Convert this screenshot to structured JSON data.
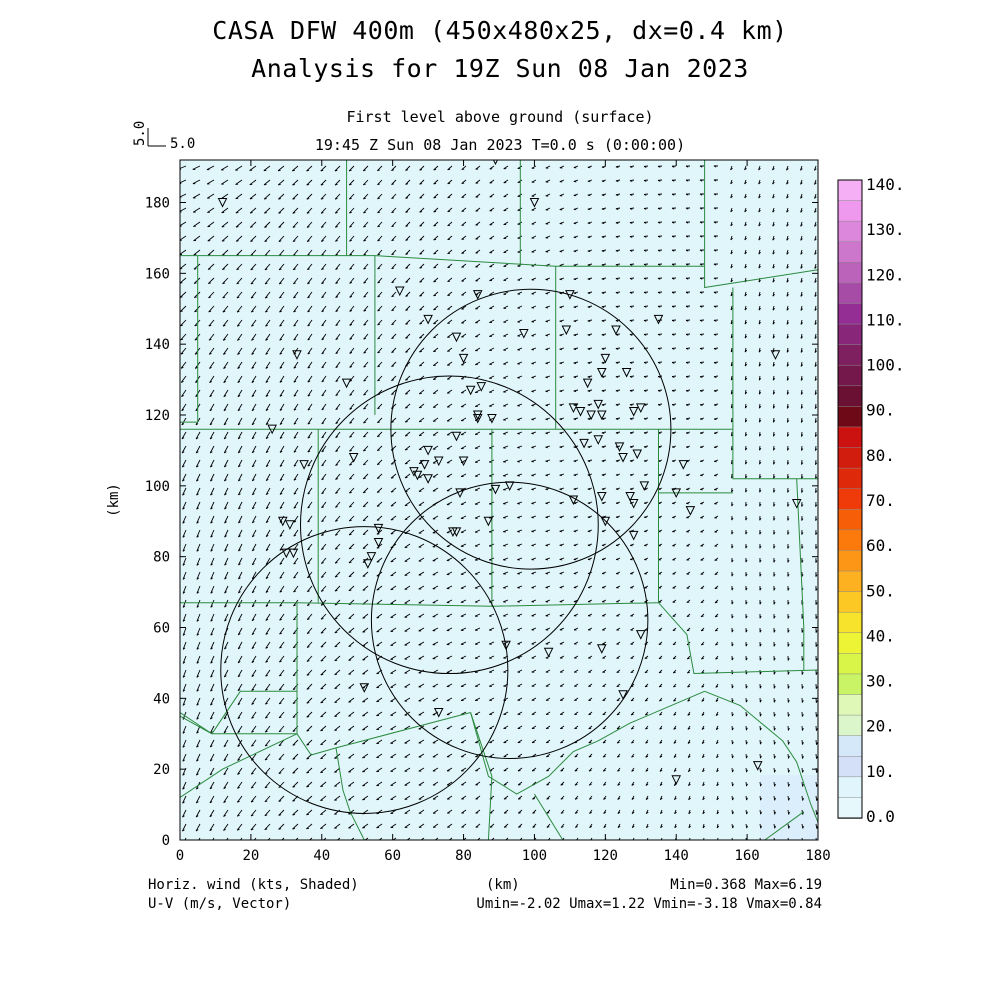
{
  "header": {
    "title_line1": "CASA DFW 400m (450x480x25, dx=0.4 km)",
    "title_line2": "Analysis for 19Z Sun 08 Jan 2023",
    "level": "First level above ground (surface)",
    "valid_time": "19:45 Z Sun 08 Jan 2023    T=0.0 s (0:00:00)"
  },
  "reference_vector": {
    "vertical_label": "5.0",
    "horizontal_label": "5.0"
  },
  "axes": {
    "x_label": "(km)",
    "y_label": "(km)",
    "x_ticks": [
      "0",
      "20",
      "40",
      "60",
      "80",
      "100",
      "120",
      "140",
      "160",
      "180"
    ],
    "y_ticks": [
      "0",
      "20",
      "40",
      "60",
      "80",
      "100",
      "120",
      "140",
      "160",
      "180"
    ],
    "x_range": [
      0,
      180
    ],
    "y_range": [
      0,
      192
    ]
  },
  "colorbar": {
    "labels": [
      "140.",
      "130.",
      "120.",
      "110.",
      "100.",
      "90.",
      "80.",
      "70.",
      "60.",
      "50.",
      "40.",
      "30.",
      "20.",
      "10.",
      "0.0"
    ],
    "colors": [
      "#f5b0f5",
      "#ee98ee",
      "#dc86dc",
      "#cc76cc",
      "#bb62bb",
      "#a64ca6",
      "#942e94",
      "#88267a",
      "#7e2060",
      "#74184c",
      "#6a1033",
      "#6e0a18",
      "#cc1111",
      "#d11d0d",
      "#de2a0a",
      "#ef3b0a",
      "#f65e08",
      "#fc7a0b",
      "#fd9516",
      "#fdb020",
      "#fbc824",
      "#f7e22c",
      "#ecf435",
      "#d9f648",
      "#c8f466",
      "#dff7b7",
      "#dcf6cc",
      "#d5e8f9",
      "#d3e0f8",
      "#e0f6fc",
      "#e6f8fc"
    ]
  },
  "footer": {
    "left_line1": "Horiz. wind (kts, Shaded)",
    "left_line2": "U-V (m/s, Vector)",
    "center": "(km)",
    "right_line1": "Min=0.368 Max=6.19",
    "right_line2": "Umin=-2.02 Umax=1.22 Vmin=-3.18 Vmax=0.84"
  },
  "map": {
    "field_color": "#e0f6fb",
    "boundary_color": "#2b8a3e",
    "radar_rings": [
      {
        "center_km": [
          99,
          116
        ],
        "radius_km": 39.5
      },
      {
        "center_km": [
          76,
          89
        ],
        "radius_km": 42
      },
      {
        "center_km": [
          93,
          62
        ],
        "radius_km": 39
      },
      {
        "center_km": [
          52,
          48
        ],
        "radius_km": 40.5
      }
    ],
    "stations_km": [
      [
        89,
        192
      ],
      [
        12,
        180
      ],
      [
        100,
        180
      ],
      [
        62,
        155
      ],
      [
        84,
        154
      ],
      [
        110,
        154
      ],
      [
        70,
        147
      ],
      [
        135,
        147
      ],
      [
        78,
        142
      ],
      [
        97,
        143
      ],
      [
        109,
        144
      ],
      [
        123,
        144
      ],
      [
        33,
        137
      ],
      [
        120,
        136
      ],
      [
        80,
        136
      ],
      [
        168,
        137
      ],
      [
        47,
        129
      ],
      [
        85,
        128
      ],
      [
        115,
        129
      ],
      [
        119,
        132
      ],
      [
        126,
        132
      ],
      [
        82,
        127
      ],
      [
        84,
        120
      ],
      [
        111,
        122
      ],
      [
        113,
        121
      ],
      [
        116,
        120
      ],
      [
        118,
        123
      ],
      [
        119,
        120
      ],
      [
        128,
        121
      ],
      [
        130,
        122
      ],
      [
        88,
        119
      ],
      [
        84,
        119
      ],
      [
        26,
        116
      ],
      [
        78,
        114
      ],
      [
        118,
        113
      ],
      [
        114,
        112
      ],
      [
        124,
        111
      ],
      [
        129,
        109
      ],
      [
        125,
        108
      ],
      [
        70,
        110
      ],
      [
        49,
        108
      ],
      [
        69,
        106
      ],
      [
        73,
        107
      ],
      [
        80,
        107
      ],
      [
        35,
        106
      ],
      [
        66,
        104
      ],
      [
        142,
        106
      ],
      [
        67,
        103
      ],
      [
        70,
        102
      ],
      [
        131,
        100
      ],
      [
        89,
        99
      ],
      [
        93,
        100
      ],
      [
        79,
        98
      ],
      [
        119,
        97
      ],
      [
        111,
        96
      ],
      [
        127,
        97
      ],
      [
        140,
        98
      ],
      [
        128,
        95
      ],
      [
        174,
        95
      ],
      [
        144,
        93
      ],
      [
        87,
        90
      ],
      [
        29,
        90
      ],
      [
        31,
        89
      ],
      [
        120,
        90
      ],
      [
        77,
        87
      ],
      [
        78,
        87
      ],
      [
        56,
        88
      ],
      [
        128,
        86
      ],
      [
        56,
        84
      ],
      [
        30,
        81
      ],
      [
        32,
        81
      ],
      [
        53,
        78
      ],
      [
        54,
        80
      ],
      [
        130,
        58
      ],
      [
        92,
        55
      ],
      [
        119,
        54
      ],
      [
        104,
        53
      ],
      [
        52,
        43
      ],
      [
        125,
        41
      ],
      [
        73,
        36
      ],
      [
        140,
        17
      ],
      [
        163,
        21
      ]
    ]
  }
}
